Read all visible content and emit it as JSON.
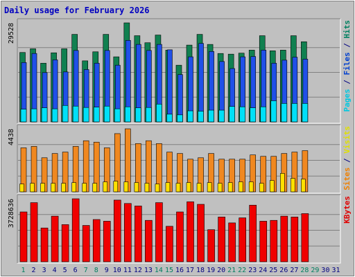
{
  "chart_data": {
    "type": "bar",
    "title": "Daily usage for February 2026",
    "categories": [
      "1",
      "2",
      "3",
      "4",
      "5",
      "6",
      "7",
      "8",
      "9",
      "10",
      "11",
      "12",
      "13",
      "14",
      "15",
      "16",
      "17",
      "18",
      "19",
      "20",
      "21",
      "22",
      "23",
      "24",
      "25",
      "26",
      "27",
      "28",
      "29",
      "30",
      "31"
    ],
    "panels": [
      {
        "name": "pages-files-hits",
        "ymax_label": "29528",
        "ymax": 29528,
        "legend": [
          {
            "text": "Pages",
            "color": "#00c8e0"
          },
          {
            "text": " / ",
            "color": "#000080"
          },
          {
            "text": "Files",
            "color": "#0040d0"
          },
          {
            "text": " / ",
            "color": "#000080"
          },
          {
            "text": "Hits",
            "color": "#008060"
          }
        ],
        "series": [
          {
            "name": "Hits",
            "color": "#108050",
            "values": [
              20700,
              21800,
              17500,
              20600,
              21800,
              26100,
              18200,
              20900,
              26100,
              19400,
              29528,
              25700,
              23600,
              25900,
              21400,
              16900,
              22900,
              26100,
              23100,
              20400,
              20200,
              20500,
              21400,
              25700,
              21200,
              21400,
              25700,
              23900,
              0,
              0,
              0
            ]
          },
          {
            "name": "Files",
            "color": "#2050e8",
            "values": [
              17700,
              20400,
              14700,
              18500,
              14900,
              21300,
              15600,
              17500,
              21300,
              16900,
              24300,
              23100,
              21300,
              23100,
              21500,
              14100,
              19400,
              23400,
              21000,
              18000,
              15900,
              19400,
              19500,
              21400,
              17500,
              18400,
              19300,
              18700,
              0,
              0,
              0
            ]
          },
          {
            "name": "Pages",
            "color": "#00e0f8",
            "values": [
              3800,
              3900,
              4200,
              3900,
              4900,
              4700,
              4300,
              4400,
              4700,
              3900,
              4500,
              4200,
              4300,
              5300,
              2300,
              2100,
              3300,
              3200,
              3500,
              3500,
              4600,
              4500,
              4200,
              4500,
              6300,
              5500,
              5500,
              5500,
              0,
              0,
              0
            ]
          }
        ]
      },
      {
        "name": "visits-sites",
        "ymax_label": "4438",
        "ymax": 4438,
        "legend": [
          {
            "text": "Sites",
            "color": "#f08000"
          },
          {
            "text": " / ",
            "color": "#000080"
          },
          {
            "text": "Visits",
            "color": "#e0e000"
          }
        ],
        "series": [
          {
            "name": "Visits",
            "color": "#f08820",
            "values": [
              3100,
              3200,
              2400,
              2700,
              2800,
              3200,
              3600,
              3500,
              3100,
              4100,
              4438,
              3400,
              3600,
              3400,
              2800,
              2700,
              2300,
              2400,
              2700,
              2300,
              2300,
              2300,
              2600,
              2500,
              2500,
              2700,
              2800,
              2900,
              0,
              0,
              0
            ]
          },
          {
            "name": "Sites",
            "color": "#ffe000",
            "values": [
              550,
              600,
              600,
              600,
              600,
              650,
              600,
              600,
              700,
              750,
              700,
              650,
              600,
              550,
              650,
              600,
              650,
              600,
              650,
              600,
              650,
              700,
              700,
              600,
              800,
              1300,
              950,
              900,
              0,
              0,
              0
            ]
          }
        ]
      },
      {
        "name": "kbytes",
        "ymax_label": "3728636",
        "ymax": 3728636,
        "legend": [
          {
            "text": "KBytes",
            "color": "#e00000"
          }
        ],
        "series": [
          {
            "name": "KBytes",
            "color": "#f00000",
            "values": [
              2950000,
              3500000,
              2000000,
              2700000,
              2200000,
              3728636,
              2150000,
              2500000,
              2400000,
              3650000,
              3450000,
              3300000,
              2450000,
              3500000,
              2100000,
              2950000,
              3550000,
              3400000,
              1900000,
              2650000,
              2300000,
              2600000,
              3350000,
              2400000,
              2450000,
              2700000,
              2650000,
              2850000,
              0,
              0,
              0
            ]
          }
        ]
      }
    ],
    "weekend_days": [
      "1",
      "7",
      "8",
      "14",
      "15",
      "21",
      "22",
      "28",
      "29"
    ],
    "colors": {
      "background": "#c0c0c0",
      "plot_background": "#c0c0c0",
      "title": "#0000c0",
      "day_label": "#000080",
      "weekend_label": "#008060",
      "grid": "#808080"
    }
  }
}
